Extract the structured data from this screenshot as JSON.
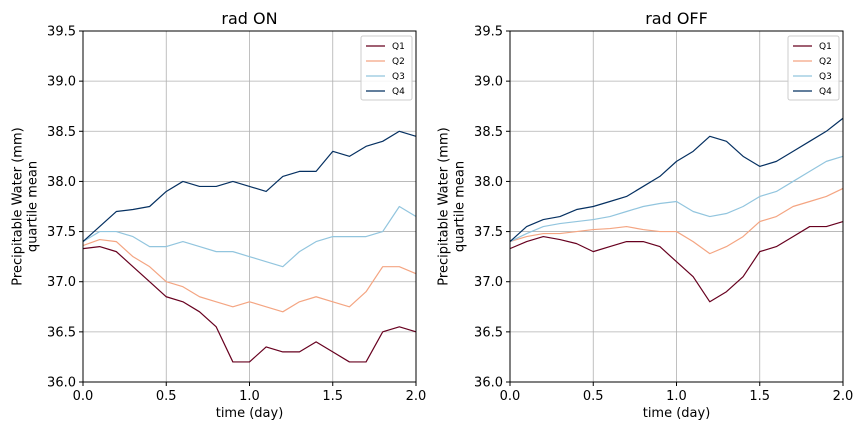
{
  "colors": {
    "Q1": "#67001f",
    "Q2": "#f4a582",
    "Q3": "#92c5de",
    "Q4": "#053061"
  },
  "chart_data": [
    {
      "type": "line",
      "title": "rad ON",
      "xlabel": "time (day)",
      "ylabel": [
        "Precipitable Water (mm)",
        "quartile mean"
      ],
      "xlim": [
        0.0,
        2.0
      ],
      "ylim": [
        36.0,
        39.5
      ],
      "xticks": [
        "0.0",
        "0.5",
        "1.0",
        "1.5",
        "2.0"
      ],
      "yticks": [
        "36.0",
        "36.5",
        "37.0",
        "37.5",
        "38.0",
        "38.5",
        "39.0",
        "39.5"
      ],
      "grid": true,
      "legend": "top-right",
      "x": [
        0.0,
        0.1,
        0.2,
        0.3,
        0.4,
        0.5,
        0.6,
        0.7,
        0.8,
        0.9,
        1.0,
        1.1,
        1.2,
        1.3,
        1.4,
        1.5,
        1.6,
        1.7,
        1.8,
        1.9,
        2.0
      ],
      "series": [
        {
          "name": "Q1",
          "values": [
            37.33,
            37.35,
            37.3,
            37.15,
            37.0,
            36.85,
            36.8,
            36.7,
            36.55,
            36.2,
            36.2,
            36.35,
            36.3,
            36.3,
            36.4,
            36.3,
            36.2,
            36.2,
            36.5,
            36.55,
            36.5
          ]
        },
        {
          "name": "Q2",
          "values": [
            37.36,
            37.42,
            37.4,
            37.25,
            37.15,
            37.0,
            36.95,
            36.85,
            36.8,
            36.75,
            36.8,
            36.75,
            36.7,
            36.8,
            36.85,
            36.8,
            36.75,
            36.9,
            37.15,
            37.15,
            37.08
          ]
        },
        {
          "name": "Q3",
          "values": [
            37.4,
            37.5,
            37.5,
            37.45,
            37.35,
            37.35,
            37.4,
            37.35,
            37.3,
            37.3,
            37.25,
            37.2,
            37.15,
            37.3,
            37.4,
            37.45,
            37.45,
            37.45,
            37.5,
            37.75,
            37.65
          ]
        },
        {
          "name": "Q4",
          "values": [
            37.4,
            37.55,
            37.7,
            37.72,
            37.75,
            37.9,
            38.0,
            37.95,
            37.95,
            38.0,
            37.95,
            37.9,
            38.05,
            38.1,
            38.1,
            38.3,
            38.25,
            38.35,
            38.4,
            38.5,
            38.45
          ]
        }
      ]
    },
    {
      "type": "line",
      "title": "rad OFF",
      "xlabel": "time (day)",
      "ylabel": [
        "Precipitable Water (mm)",
        "quartile mean"
      ],
      "xlim": [
        0.0,
        2.0
      ],
      "ylim": [
        36.0,
        39.5
      ],
      "xticks": [
        "0.0",
        "0.5",
        "1.0",
        "1.5",
        "2.0"
      ],
      "yticks": [
        "36.0",
        "36.5",
        "37.0",
        "37.5",
        "38.0",
        "38.5",
        "39.0",
        "39.5"
      ],
      "grid": true,
      "legend": "top-right",
      "x": [
        0.0,
        0.1,
        0.2,
        0.3,
        0.4,
        0.5,
        0.6,
        0.7,
        0.8,
        0.9,
        1.0,
        1.1,
        1.2,
        1.3,
        1.4,
        1.5,
        1.6,
        1.7,
        1.8,
        1.9,
        2.0
      ],
      "series": [
        {
          "name": "Q1",
          "values": [
            37.33,
            37.4,
            37.45,
            37.42,
            37.38,
            37.3,
            37.35,
            37.4,
            37.4,
            37.35,
            37.2,
            37.05,
            36.8,
            36.9,
            37.05,
            37.3,
            37.35,
            37.45,
            37.55,
            37.55,
            37.6
          ]
        },
        {
          "name": "Q2",
          "values": [
            37.4,
            37.45,
            37.48,
            37.48,
            37.5,
            37.52,
            37.53,
            37.55,
            37.52,
            37.5,
            37.5,
            37.4,
            37.28,
            37.35,
            37.45,
            37.6,
            37.65,
            37.75,
            37.8,
            37.85,
            37.93
          ]
        },
        {
          "name": "Q3",
          "values": [
            37.4,
            37.48,
            37.55,
            37.58,
            37.6,
            37.62,
            37.65,
            37.7,
            37.75,
            37.78,
            37.8,
            37.7,
            37.65,
            37.68,
            37.75,
            37.85,
            37.9,
            38.0,
            38.1,
            38.2,
            38.25
          ]
        },
        {
          "name": "Q4",
          "values": [
            37.4,
            37.55,
            37.62,
            37.65,
            37.72,
            37.75,
            37.8,
            37.85,
            37.95,
            38.05,
            38.2,
            38.3,
            38.45,
            38.4,
            38.25,
            38.15,
            38.2,
            38.3,
            38.4,
            38.5,
            38.63
          ]
        }
      ]
    }
  ]
}
